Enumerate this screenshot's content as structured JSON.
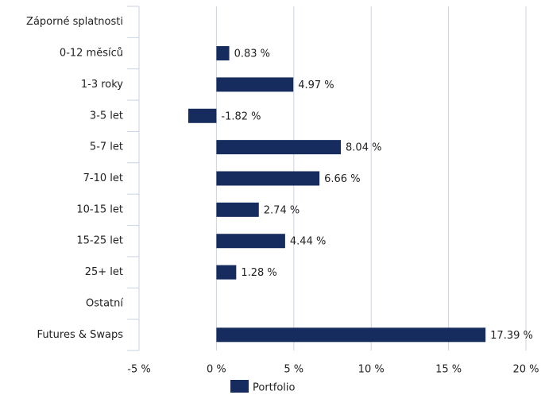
{
  "chart_data": {
    "type": "barh",
    "categories": [
      "Záporné splatnosti",
      "0-12 měsíců",
      "1-3 roky",
      "3-5 let",
      "5-7 let",
      "7-10 let",
      "10-15 let",
      "15-25 let",
      "25+ let",
      "Ostatní",
      "Futures & Swaps"
    ],
    "series": [
      {
        "name": "Portfolio",
        "color": "#172c5e",
        "values": [
          null,
          0.83,
          4.97,
          -1.82,
          8.04,
          6.66,
          2.74,
          4.44,
          1.28,
          null,
          17.39
        ],
        "value_labels": [
          null,
          "0.83 %",
          "4.97 %",
          "-1.82 %",
          "8.04 %",
          "6.66 %",
          "2.74 %",
          "4.44 %",
          "1.28 %",
          null,
          "17.39 %"
        ]
      }
    ],
    "xlim": [
      -5,
      20
    ],
    "xticks": [
      {
        "value": -5,
        "label": "-5 %"
      },
      {
        "value": 0,
        "label": "0 %"
      },
      {
        "value": 5,
        "label": "5 %"
      },
      {
        "value": 10,
        "label": "10 %"
      },
      {
        "value": 15,
        "label": "15 %"
      },
      {
        "value": 20,
        "label": "20 %"
      }
    ],
    "grid": true,
    "legend": "bottom"
  }
}
